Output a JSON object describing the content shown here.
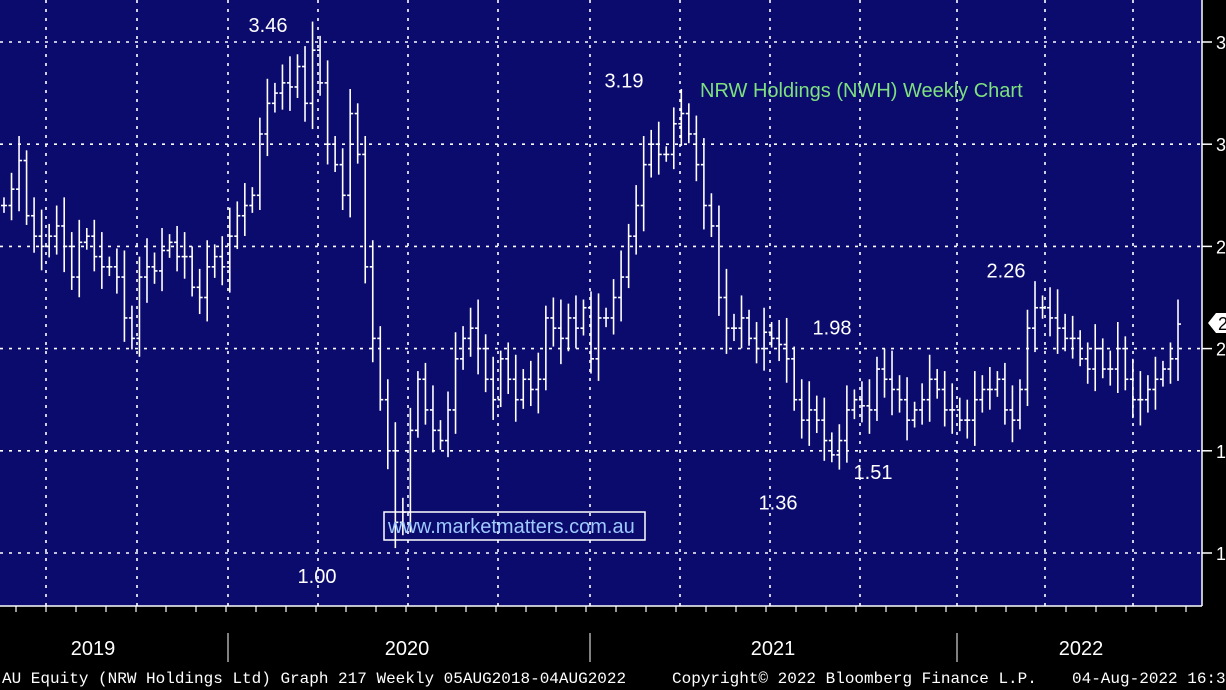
{
  "chart_data": {
    "type": "bar",
    "style": "ohlc-weekly",
    "title": "NRW Holdings (NWH) Weekly Chart",
    "watermark": "www.marketmatters.com.au",
    "ylim": [
      0.99,
      3.54
    ],
    "y_gridlines": [
      1.0,
      1.5,
      2.0,
      2.5,
      3.0,
      3.5
    ],
    "grid": true,
    "colors": {
      "background": "#0b0b6e",
      "grid": "#ffffff",
      "bars": "#ffffff",
      "title": "#7ee07e",
      "url": "#9fc9ff"
    },
    "x_labels": [
      "2019",
      "2020",
      "2021",
      "2022"
    ],
    "annotations": [
      {
        "text": "3.46",
        "value": 3.46
      },
      {
        "text": "1.00",
        "value": 1.0
      },
      {
        "text": "3.19",
        "value": 3.19
      },
      {
        "text": "1.36",
        "value": 1.36
      },
      {
        "text": "1.98",
        "value": 1.98
      },
      {
        "text": "1.51",
        "value": 1.51
      },
      {
        "text": "2.26",
        "value": 2.26
      }
    ],
    "series": [
      {
        "values": [
          2.7,
          2.78,
          2.92,
          2.65,
          2.55,
          2.5,
          2.55,
          2.6,
          2.5,
          2.35,
          2.52,
          2.55,
          2.45,
          2.4,
          2.4,
          2.35,
          2.15,
          2.05,
          2.35,
          2.4,
          2.38,
          2.48,
          2.52,
          2.45,
          2.45,
          2.3,
          2.25,
          2.4,
          2.45,
          2.4,
          2.55,
          2.65,
          2.7,
          2.75,
          3.05,
          3.2,
          3.25,
          3.3,
          3.28,
          3.38,
          3.2,
          3.46,
          3.3,
          3.0,
          2.9,
          2.75,
          3.15,
          2.95,
          2.4,
          2.05,
          1.75,
          1.5,
          1.15,
          1.2,
          1.6,
          1.85,
          1.7,
          1.6,
          1.55,
          1.7,
          1.95,
          2.05,
          2.1,
          2.0,
          1.85,
          1.75,
          1.95,
          1.85,
          1.75,
          1.85,
          1.8,
          1.85,
          2.15,
          2.1,
          2.05,
          2.15,
          2.1,
          2.2,
          1.95,
          2.15,
          2.15,
          2.25,
          2.35,
          2.55,
          2.7,
          2.9,
          3.0,
          2.95,
          2.95,
          3.1,
          3.15,
          3.05,
          2.9,
          2.7,
          2.6,
          2.25,
          2.1,
          2.1,
          2.15,
          2.05,
          2.0,
          2.08,
          2.05,
          2.02,
          1.95,
          1.75,
          1.65,
          1.7,
          1.65,
          1.55,
          1.48,
          1.55,
          1.7,
          1.75,
          1.72,
          1.7,
          1.9,
          1.85,
          1.8,
          1.75,
          1.65,
          1.7,
          1.75,
          1.85,
          1.8,
          1.7,
          1.7,
          1.65,
          1.65,
          1.75,
          1.8,
          1.8,
          1.85,
          1.7,
          1.65,
          1.8,
          2.1,
          2.2,
          2.2,
          2.15,
          2.1,
          2.05,
          2.05,
          1.95,
          1.9,
          2.0,
          1.9,
          1.9,
          2.0,
          1.85,
          1.75,
          1.75,
          1.8,
          1.85,
          1.9,
          1.95,
          2.12
        ]
      }
    ]
  },
  "footer": {
    "left": "AU Equity (NRW Holdings Ltd) Graph 217  Weekly 05AUG2018-04AUG2022",
    "center": "Copyright© 2022 Bloomberg Finance L.P.",
    "right": "04-Aug-2022 16:3"
  },
  "right_axis_labels": [
    "3",
    "3",
    "2",
    "2",
    "1",
    "1"
  ],
  "last_price_badge": "2"
}
